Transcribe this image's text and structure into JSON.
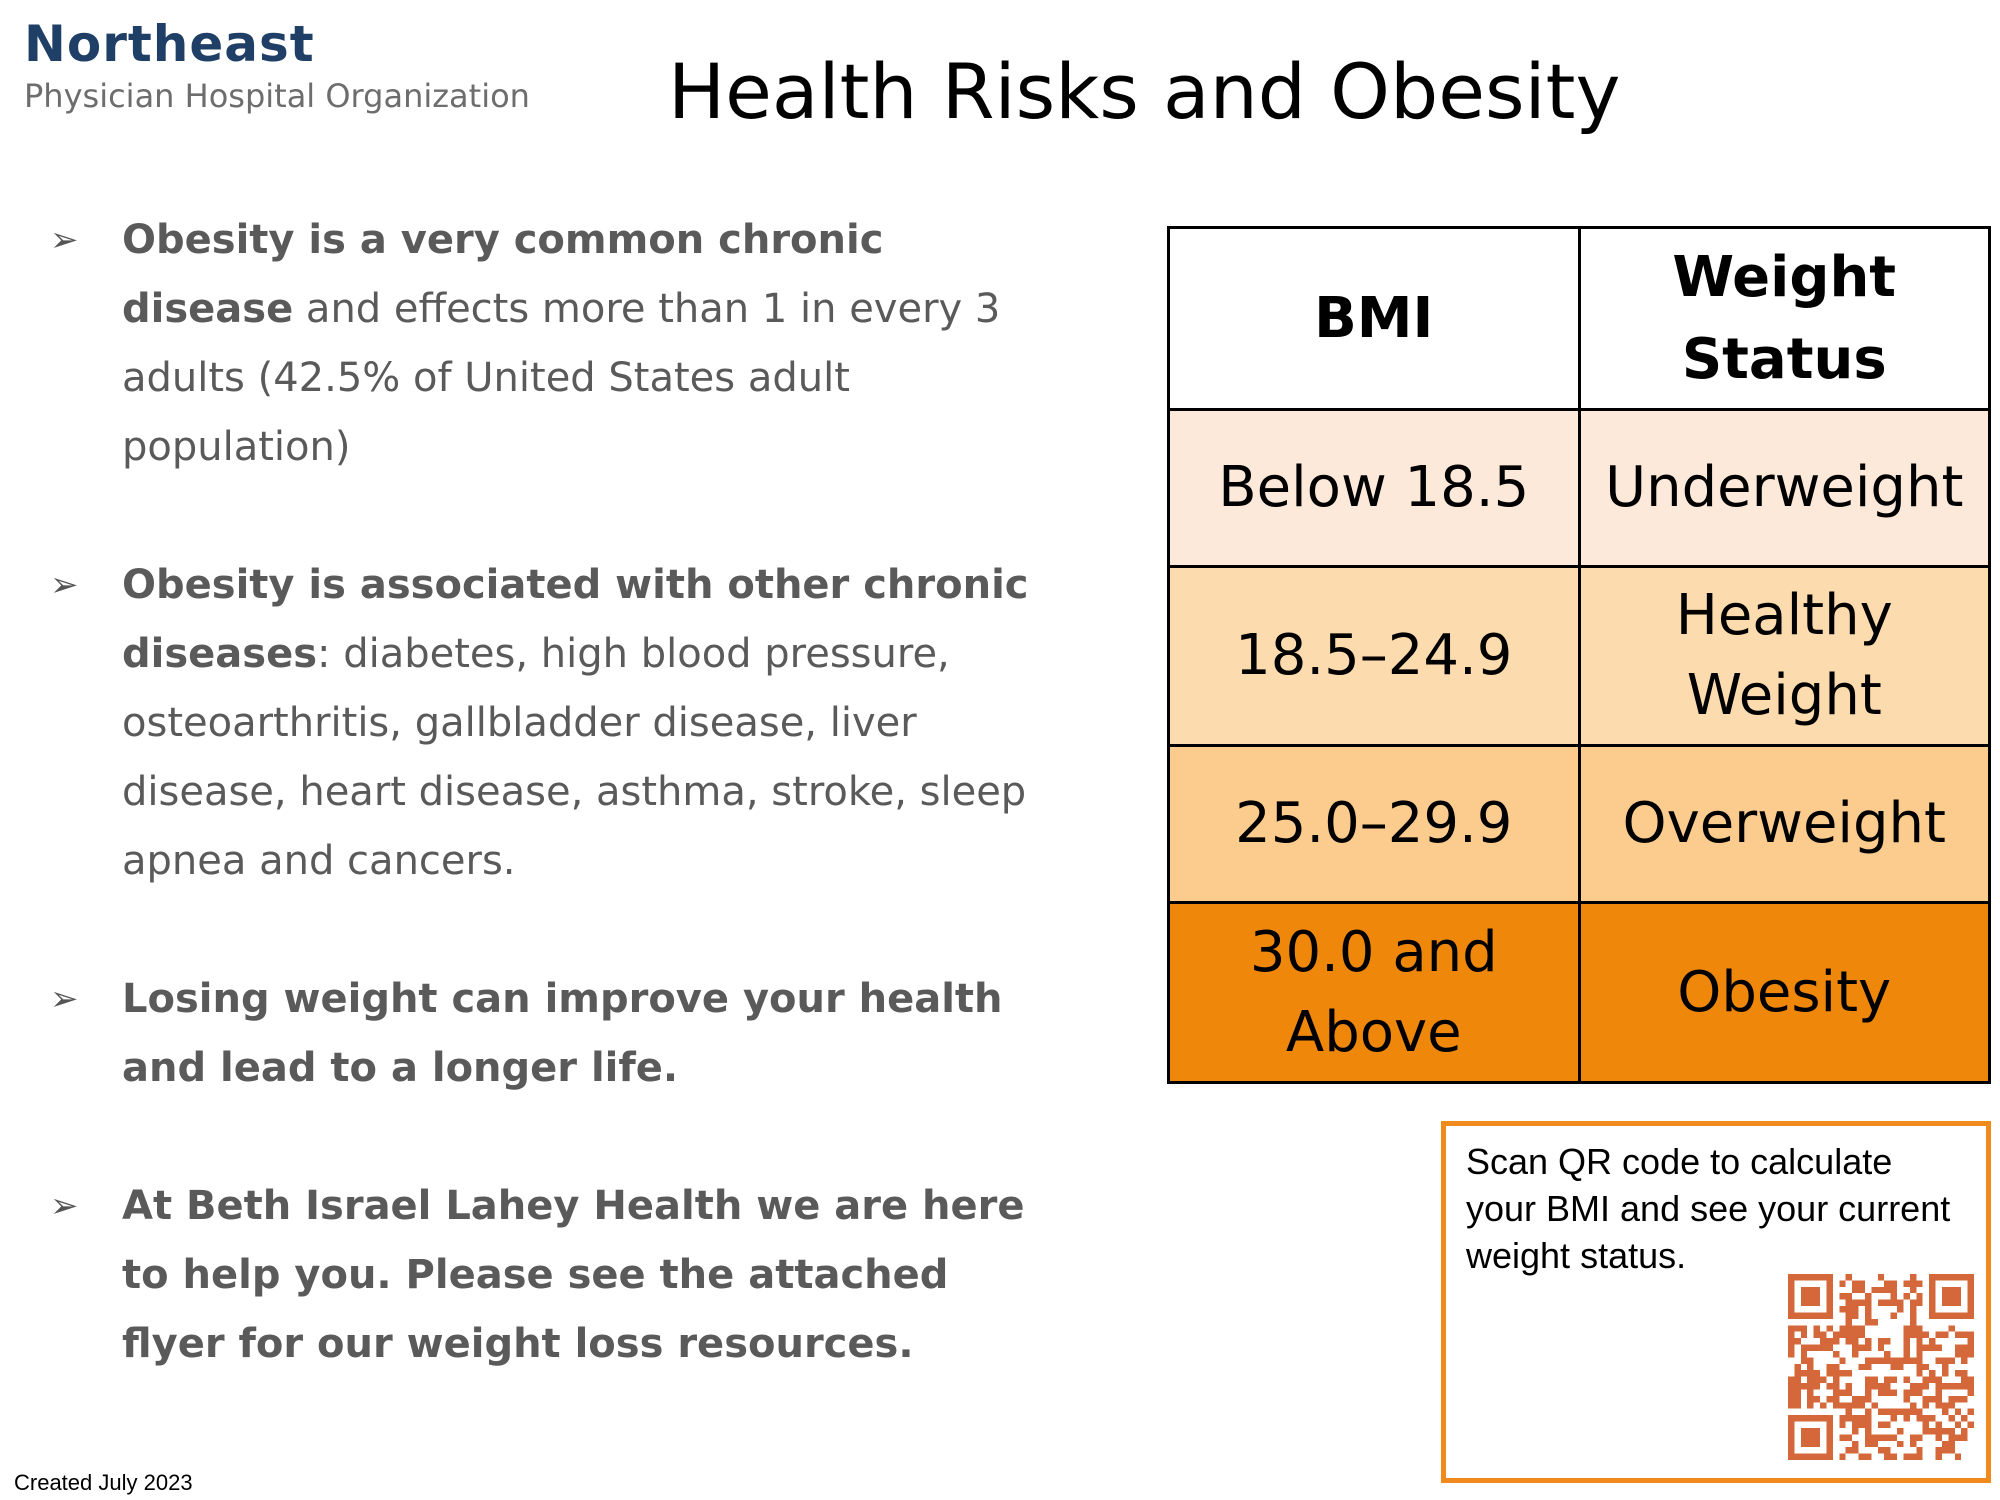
{
  "logo": {
    "name": "Northeast",
    "subtitle": "Physician Hospital Organization"
  },
  "title": "Health Risks and Obesity",
  "bullets": [
    {
      "bold": "Obesity is a very common chronic disease",
      "rest": " and effects more than 1 in every 3 adults (42.5% of United States adult population)"
    },
    {
      "bold": "Obesity is associated with other chronic diseases",
      "rest": ": diabetes, high blood pressure, osteoarthritis, gallbladder disease, liver disease, heart disease, asthma, stroke, sleep apnea and cancers."
    },
    {
      "bold": "Losing weight can improve your health and lead to a longer life.",
      "rest": ""
    },
    {
      "bold": "At Beth Israel Lahey Health we are here to help you.  Please see the attached flyer for our weight loss resources.",
      "rest": ""
    }
  ],
  "bullet_marker": "➢",
  "table": {
    "headers": [
      "BMI",
      "Weight Status"
    ],
    "rows": [
      {
        "bmi": "Below 18.5",
        "status": "Underweight",
        "color": "#fde9d9"
      },
      {
        "bmi": "18.5–24.9",
        "status": "Healthy Weight",
        "color": "#fcdbae"
      },
      {
        "bmi": "25.0–29.9",
        "status": "Overweight",
        "color": "#fccc8e"
      },
      {
        "bmi": "30.0 and Above",
        "status": "Obesity",
        "color": "#ee870a"
      }
    ]
  },
  "qr": {
    "text": "Scan QR code to calculate your BMI and see your current weight status.",
    "icon": "qr-code-icon",
    "border_color": "#f08a1c",
    "code_color": "#d4683a"
  },
  "footer": "Created July 2023"
}
